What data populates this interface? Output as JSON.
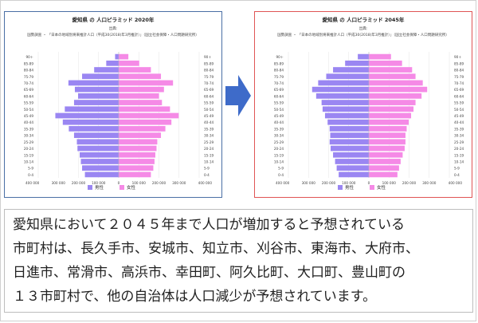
{
  "colors": {
    "male": "#9a86f2",
    "female": "#f58ae6",
    "border_2020": "#4a6fa5",
    "border_2045": "#e05555",
    "arrow": "#3e6bc9"
  },
  "arrow_icon": "right-arrow-icon",
  "chart_data": [
    {
      "type": "bar",
      "title": "愛知県 の 人口ピラミッド 2020年",
      "source_line1": "出典:",
      "source_line2": "国勢調査 ・ 「日本の地域別将来推計人口（平成30(2018)年3月推計）」（国立社会保障・人口問題研究所）",
      "categories": [
        "0-4",
        "5-9",
        "10-14",
        "15-19",
        "20-24",
        "25-29",
        "30-34",
        "35-39",
        "40-44",
        "45-49",
        "50-54",
        "55-59",
        "60-64",
        "65-69",
        "70-74",
        "75-79",
        "80-84",
        "85-89",
        "90＋"
      ],
      "xlim": [
        -400000,
        400000
      ],
      "xticks": [
        -400000,
        -300000,
        -200000,
        -100000,
        0,
        100000,
        200000,
        300000,
        400000
      ],
      "xtick_labels": [
        "400 000",
        "300 000",
        "200 000",
        "100 000",
        "0",
        "100 000",
        "200 000",
        "300 000",
        "400 000"
      ],
      "legend": [
        "男性",
        "女性"
      ],
      "series": [
        {
          "name": "男性",
          "values": [
            168000,
            182000,
            188000,
            194000,
            205000,
            208000,
            222000,
            248000,
            278000,
            315000,
            268000,
            222000,
            202000,
            218000,
            250000,
            182000,
            122000,
            62000,
            18000
          ]
        },
        {
          "name": "女性",
          "values": [
            160000,
            172000,
            178000,
            182000,
            188000,
            192000,
            210000,
            232000,
            262000,
            298000,
            255000,
            215000,
            200000,
            225000,
            270000,
            210000,
            160000,
            102000,
            48000
          ]
        }
      ]
    },
    {
      "type": "bar",
      "title": "愛知県 の 人口ピラミッド 2045年",
      "source_line1": "出典:",
      "source_line2": "国勢調査 ・ 「日本の地域別将来推計人口（平成30(2018)年3月推計）」（国立社会保障・人口問題研究所）",
      "categories": [
        "0-4",
        "5-9",
        "10-14",
        "15-19",
        "20-24",
        "25-29",
        "30-34",
        "35-39",
        "40-44",
        "45-49",
        "50-54",
        "55-59",
        "60-64",
        "65-69",
        "70-74",
        "75-79",
        "80-84",
        "85-89",
        "90＋"
      ],
      "xlim": [
        -400000,
        400000
      ],
      "xticks": [
        -400000,
        -300000,
        -200000,
        -100000,
        0,
        100000,
        200000,
        300000,
        400000
      ],
      "xtick_labels": [
        "400 000",
        "300 000",
        "200 000",
        "100 000",
        "0",
        "100 000",
        "200 000",
        "300 000",
        "400 000"
      ],
      "legend": [
        "男性",
        "女性"
      ],
      "series": [
        {
          "name": "男性",
          "values": [
            150000,
            160000,
            168000,
            178000,
            190000,
            195000,
            192000,
            195000,
            205000,
            218000,
            230000,
            235000,
            262000,
            282000,
            252000,
            212000,
            178000,
            118000,
            55000
          ]
        },
        {
          "name": "女性",
          "values": [
            142000,
            150000,
            158000,
            168000,
            178000,
            182000,
            182000,
            188000,
            198000,
            210000,
            222000,
            232000,
            262000,
            290000,
            268000,
            232000,
            215000,
            165000,
            110000
          ]
        }
      ]
    }
  ],
  "caption": {
    "line1": "愛知県において２０４５年まで人口が増加すると予想されている",
    "line2": "市町村は、長久手市、安城市、知立市、刈谷市、東海市、大府市、",
    "line3": "日進市、常滑市、高浜市、幸田町、阿久比町、大口町、豊山町の",
    "line4": "１３市町村で、他の自治体は人口減少が予想されています。"
  }
}
